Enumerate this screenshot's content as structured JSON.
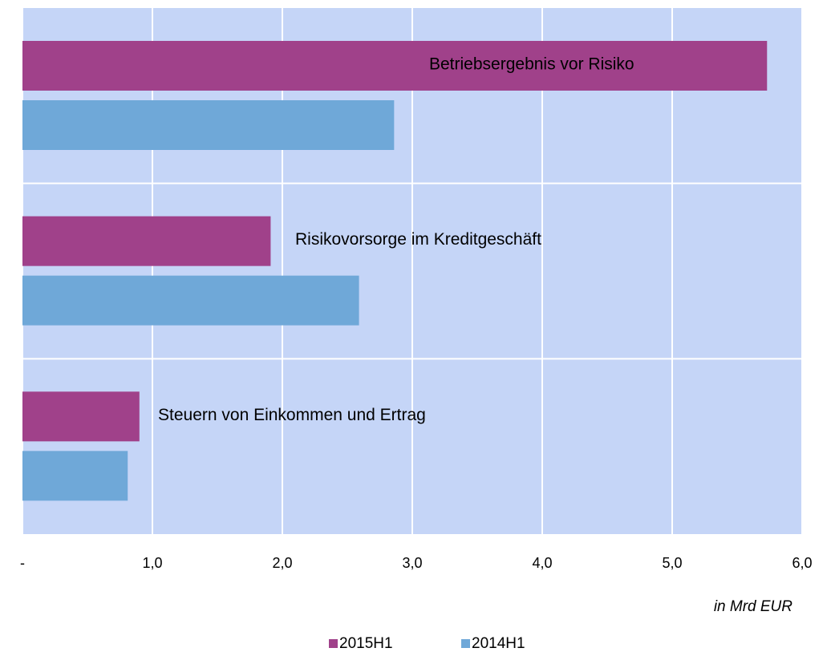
{
  "chart_data": {
    "type": "hbar",
    "categories": [
      "Betriebsergebnis vor Risiko",
      "Risikovorsorge im Kreditgeschäft",
      "Steuern von Einkommen und Ertrag"
    ],
    "series": [
      {
        "name": "2015H1",
        "color": "#a0418a",
        "values": [
          5.73,
          1.91,
          0.9
        ]
      },
      {
        "name": "2014H1",
        "color": "#6fa8d8",
        "values": [
          2.86,
          2.59,
          0.81
        ]
      }
    ],
    "xlabel": "in Mrd EUR",
    "xlim": [
      0,
      6
    ],
    "xticks": [
      {
        "value": 0,
        "label": "-"
      },
      {
        "value": 1,
        "label": "1,0"
      },
      {
        "value": 2,
        "label": "2,0"
      },
      {
        "value": 3,
        "label": "3,0"
      },
      {
        "value": 4,
        "label": "4,0"
      },
      {
        "value": 5,
        "label": "5,0"
      },
      {
        "value": 6,
        "label": "6,0"
      }
    ],
    "grid": true,
    "background": "#c5d5f7"
  }
}
